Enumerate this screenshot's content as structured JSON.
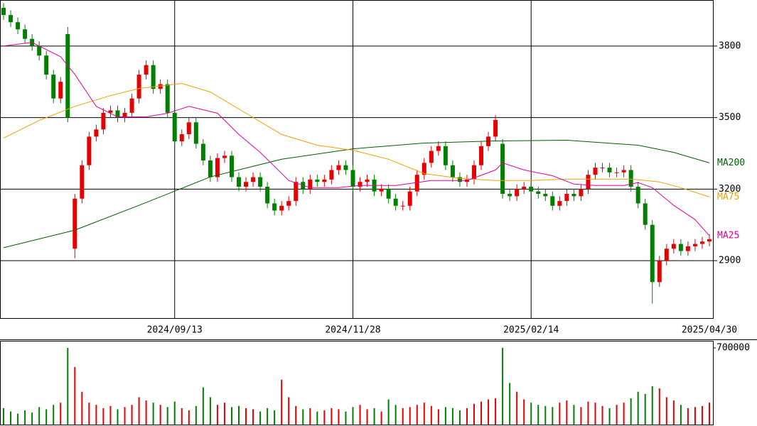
{
  "chart_data": [
    {
      "type": "candlestick",
      "up_color": "#e60000",
      "down_color": "#008000",
      "categories": [
        null,
        null,
        null,
        null,
        null,
        null,
        null,
        null,
        null,
        null,
        null,
        null,
        null,
        null,
        null,
        null,
        null,
        null,
        null,
        null,
        null,
        null,
        null,
        null,
        "2024/09/13",
        null,
        null,
        null,
        null,
        null,
        null,
        null,
        null,
        null,
        null,
        null,
        null,
        null,
        null,
        null,
        null,
        null,
        null,
        null,
        null,
        null,
        null,
        null,
        null,
        "2024/11/28",
        null,
        null,
        null,
        null,
        null,
        null,
        null,
        null,
        null,
        null,
        null,
        null,
        null,
        null,
        null,
        null,
        null,
        null,
        null,
        null,
        null,
        null,
        null,
        null,
        "2025/02/14",
        null,
        null,
        null,
        null,
        null,
        null,
        null,
        null,
        null,
        null,
        null,
        null,
        null,
        null,
        null,
        null,
        null,
        null,
        null,
        null,
        null,
        null,
        null,
        null,
        "2025/04/30"
      ],
      "open": [
        3960,
        3930,
        3900,
        3870,
        3830,
        3800,
        3760,
        3680,
        3580,
        3850,
        2950,
        3160,
        3300,
        3420,
        3450,
        3520,
        3530,
        3500,
        3520,
        3580,
        3680,
        3720,
        3620,
        3640,
        3520,
        3400,
        3430,
        3480,
        3390,
        3320,
        3250,
        3330,
        3340,
        3250,
        3210,
        3230,
        3250,
        3210,
        3140,
        3110,
        3130,
        3150,
        3230,
        3200,
        3240,
        3230,
        3240,
        3280,
        3300,
        3280,
        3210,
        3230,
        3240,
        3190,
        3200,
        3160,
        3130,
        3130,
        3190,
        3260,
        3310,
        3360,
        3380,
        3300,
        3250,
        3230,
        3240,
        3300,
        3380,
        3420,
        3390,
        3180,
        3170,
        3200,
        3210,
        3190,
        3180,
        3170,
        3130,
        3150,
        3180,
        3170,
        3200,
        3260,
        3290,
        3290,
        3270,
        3270,
        3280,
        3210,
        3140,
        3050,
        2810,
        2900,
        2950,
        2970,
        2940,
        2960,
        2970,
        2980
      ],
      "high": [
        3980,
        3950,
        3920,
        3890,
        3850,
        3820,
        3780,
        3700,
        3670,
        3880,
        3180,
        3320,
        3440,
        3470,
        3540,
        3550,
        3550,
        3540,
        3600,
        3700,
        3740,
        3740,
        3660,
        3660,
        3540,
        3450,
        3500,
        3500,
        3410,
        3340,
        3350,
        3360,
        3360,
        3270,
        3250,
        3270,
        3270,
        3230,
        3160,
        3150,
        3170,
        3250,
        3250,
        3260,
        3260,
        3260,
        3300,
        3320,
        3320,
        3300,
        3250,
        3260,
        3260,
        3220,
        3220,
        3180,
        3150,
        3210,
        3280,
        3330,
        3380,
        3400,
        3400,
        3320,
        3270,
        3260,
        3320,
        3400,
        3440,
        3510,
        3410,
        3200,
        3220,
        3230,
        3230,
        3210,
        3200,
        3190,
        3170,
        3200,
        3200,
        3220,
        3280,
        3310,
        3310,
        3310,
        3290,
        3300,
        3300,
        3230,
        3160,
        3070,
        2920,
        2970,
        2990,
        2990,
        2980,
        2990,
        3000,
        3010
      ],
      "low": [
        3910,
        3880,
        3850,
        3810,
        3780,
        3740,
        3660,
        3560,
        3560,
        3480,
        2910,
        3140,
        3280,
        3400,
        3430,
        3500,
        3480,
        3480,
        3500,
        3560,
        3660,
        3600,
        3600,
        3500,
        3380,
        3380,
        3410,
        3370,
        3300,
        3230,
        3230,
        3310,
        3230,
        3190,
        3190,
        3210,
        3190,
        3120,
        3090,
        3090,
        3110,
        3130,
        3180,
        3180,
        3210,
        3210,
        3220,
        3260,
        3260,
        3190,
        3190,
        3210,
        3170,
        3170,
        3140,
        3110,
        3110,
        3110,
        3170,
        3240,
        3290,
        3340,
        3280,
        3230,
        3210,
        3210,
        3220,
        3280,
        3360,
        3400,
        3160,
        3150,
        3150,
        3180,
        3170,
        3160,
        3150,
        3110,
        3110,
        3130,
        3150,
        3150,
        3180,
        3240,
        3270,
        3250,
        3250,
        3250,
        3190,
        3120,
        3030,
        2720,
        2790,
        2880,
        2930,
        2920,
        2920,
        2940,
        2950,
        2960
      ],
      "close": [
        3930,
        3900,
        3870,
        3830,
        3800,
        3760,
        3680,
        3580,
        3650,
        3500,
        3160,
        3300,
        3420,
        3450,
        3520,
        3530,
        3500,
        3520,
        3580,
        3680,
        3720,
        3620,
        3640,
        3520,
        3400,
        3430,
        3480,
        3390,
        3320,
        3250,
        3330,
        3340,
        3250,
        3210,
        3230,
        3250,
        3210,
        3140,
        3110,
        3130,
        3150,
        3230,
        3200,
        3240,
        3230,
        3240,
        3280,
        3300,
        3280,
        3210,
        3230,
        3240,
        3190,
        3200,
        3160,
        3130,
        3130,
        3190,
        3260,
        3310,
        3360,
        3380,
        3300,
        3250,
        3230,
        3240,
        3300,
        3380,
        3420,
        3490,
        3180,
        3170,
        3200,
        3210,
        3190,
        3180,
        3170,
        3130,
        3150,
        3180,
        3170,
        3200,
        3260,
        3290,
        3290,
        3270,
        3270,
        3280,
        3210,
        3140,
        3050,
        2810,
        2900,
        2950,
        2970,
        2940,
        2960,
        2970,
        2980,
        2990
      ],
      "series": [
        {
          "name": "MA200",
          "color": "#005f00",
          "x": [
            0,
            10,
            19,
            29,
            39,
            49,
            59,
            69,
            79,
            89,
            94,
            99
          ],
          "values": [
            2954,
            3028,
            3132,
            3251,
            3325,
            3369,
            3393,
            3402,
            3405,
            3384,
            3354,
            3310
          ]
        },
        {
          "name": "MA75",
          "color": "#f0a000",
          "x": [
            0,
            5,
            10,
            15,
            19,
            25,
            29,
            34,
            39,
            44,
            49,
            54,
            59,
            64,
            69,
            74,
            79,
            84,
            88,
            92,
            95,
            99
          ],
          "values": [
            3414,
            3488,
            3547,
            3592,
            3622,
            3643,
            3607,
            3518,
            3429,
            3384,
            3363,
            3325,
            3265,
            3245,
            3236,
            3236,
            3242,
            3242,
            3242,
            3230,
            3206,
            3167
          ]
        },
        {
          "name": "MA25",
          "color": "#e000a0",
          "x": [
            0,
            4,
            8,
            10,
            13,
            16,
            20,
            23,
            26,
            30,
            33,
            36,
            40,
            43,
            47,
            50,
            55,
            60,
            65,
            69,
            70,
            73,
            77,
            80,
            83,
            87,
            89,
            91,
            94,
            97,
            99
          ],
          "values": [
            3800,
            3815,
            3755,
            3681,
            3547,
            3503,
            3503,
            3518,
            3547,
            3518,
            3429,
            3354,
            3236,
            3206,
            3206,
            3215,
            3215,
            3236,
            3236,
            3280,
            3310,
            3280,
            3256,
            3221,
            3215,
            3215,
            3227,
            3206,
            3132,
            3072,
            3004
          ]
        }
      ],
      "ylim": [
        2659,
        3993
      ],
      "yticks": [
        2900,
        3200,
        3500,
        3800
      ],
      "grid": true
    },
    {
      "type": "bar",
      "values": [
        150000,
        120000,
        100000,
        130000,
        110000,
        160000,
        140000,
        180000,
        200000,
        700000,
        525000,
        300000,
        200000,
        180000,
        150000,
        170000,
        140000,
        160000,
        180000,
        250000,
        220000,
        200000,
        180000,
        160000,
        210000,
        150000,
        130000,
        170000,
        340000,
        250000,
        180000,
        200000,
        160000,
        170000,
        150000,
        140000,
        120000,
        150000,
        130000,
        410000,
        250000,
        170000,
        140000,
        150000,
        120000,
        130000,
        150000,
        140000,
        120000,
        160000,
        180000,
        140000,
        150000,
        120000,
        230000,
        180000,
        150000,
        160000,
        180000,
        200000,
        170000,
        140000,
        160000,
        150000,
        130000,
        150000,
        190000,
        210000,
        230000,
        240000,
        700000,
        380000,
        300000,
        230000,
        200000,
        180000,
        170000,
        160000,
        200000,
        220000,
        180000,
        160000,
        210000,
        200000,
        170000,
        150000,
        180000,
        200000,
        240000,
        300000,
        280000,
        350000,
        330000,
        250000,
        220000,
        180000,
        150000,
        160000,
        170000,
        200000
      ],
      "ylim": [
        0,
        765000
      ],
      "yticks": [
        700000
      ]
    }
  ]
}
